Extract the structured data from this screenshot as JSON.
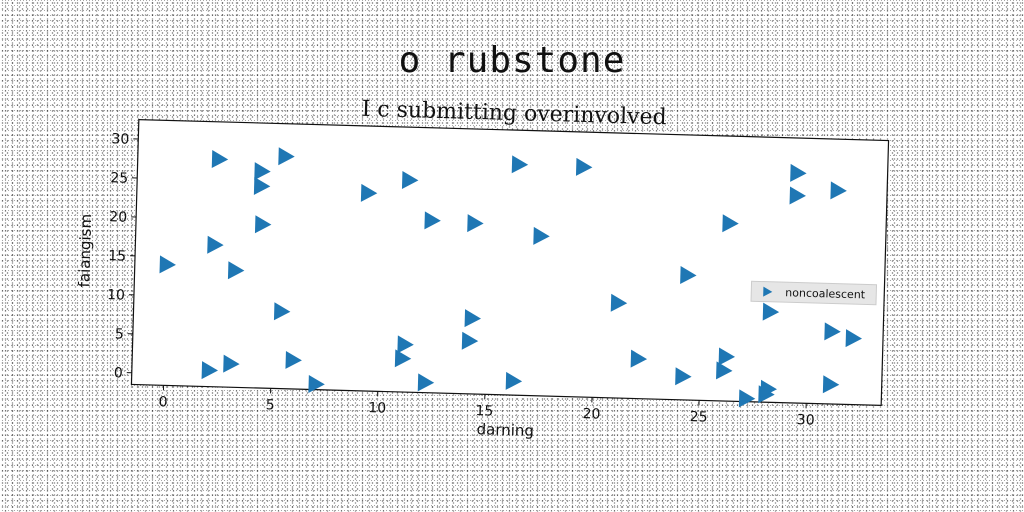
{
  "suptitle": "o rubstone",
  "chart_data": {
    "type": "scatter",
    "title": "I c submitting overinvolved",
    "xlabel": "darning",
    "ylabel": "faiangism",
    "xlim": [
      -1.5,
      33.5
    ],
    "ylim": [
      -1.5,
      32.5
    ],
    "xticks": [
      0,
      5,
      10,
      15,
      20,
      25,
      30
    ],
    "yticks": [
      0,
      5,
      10,
      15,
      20,
      25,
      30
    ],
    "grid": false,
    "legend_position": "right",
    "marker": "triangle-right",
    "color": "#1f77b4",
    "series": [
      {
        "name": "noncoalescent",
        "points": [
          [
            0,
            14
          ],
          [
            2.3,
            27.7
          ],
          [
            4.3,
            26.3
          ],
          [
            5.4,
            28.3
          ],
          [
            4.3,
            24.4
          ],
          [
            2.2,
            16.7
          ],
          [
            3.2,
            13.5
          ],
          [
            4.4,
            19.5
          ],
          [
            5.4,
            8.4
          ],
          [
            2.1,
            0.6
          ],
          [
            3.1,
            1.5
          ],
          [
            6.0,
            2.2
          ],
          [
            7.1,
            -0.8
          ],
          [
            9.3,
            23.9
          ],
          [
            11.2,
            25.7
          ],
          [
            12.3,
            20.6
          ],
          [
            14.3,
            20.4
          ],
          [
            16.3,
            28.1
          ],
          [
            19.3,
            28.0
          ],
          [
            17.4,
            19.0
          ],
          [
            11.2,
            4.6
          ],
          [
            11.1,
            2.8
          ],
          [
            12.2,
            -0.2
          ],
          [
            14.3,
            8.2
          ],
          [
            14.2,
            5.3
          ],
          [
            16.3,
            0.3
          ],
          [
            21.1,
            10.7
          ],
          [
            22.1,
            3.6
          ],
          [
            24.2,
            1.5
          ],
          [
            24.3,
            14.5
          ],
          [
            26.2,
            21.3
          ],
          [
            26.2,
            4.2
          ],
          [
            26.1,
            2.4
          ],
          [
            27.2,
            -1.1
          ],
          [
            28.1,
            -0.5
          ],
          [
            28.2,
            0.2
          ],
          [
            28.2,
            10.1
          ],
          [
            29.3,
            28.0
          ],
          [
            29.3,
            25.1
          ],
          [
            31.2,
            25.9
          ],
          [
            31.1,
            7.8
          ],
          [
            32.1,
            7.0
          ],
          [
            31.1,
            1.0
          ]
        ]
      }
    ]
  }
}
